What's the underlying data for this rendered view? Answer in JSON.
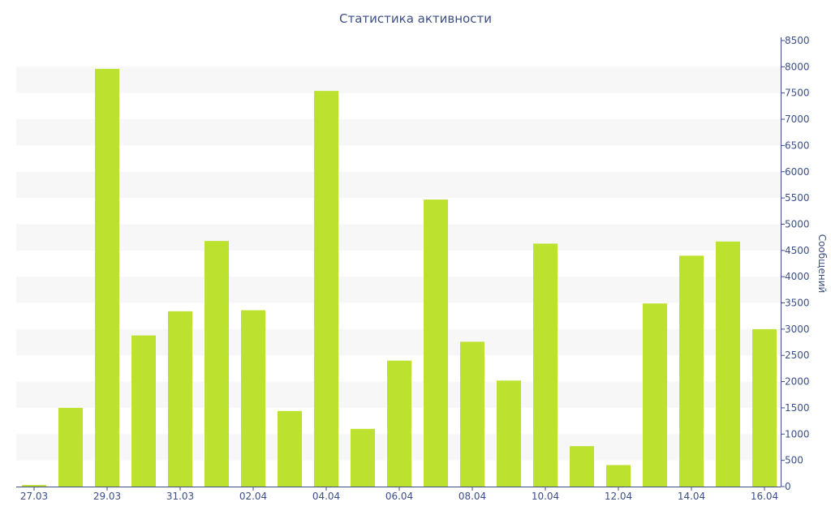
{
  "chart_data": {
    "type": "bar",
    "title": "Статистика активности",
    "xlabel": "",
    "ylabel": "Сообщений",
    "ylim": [
      0,
      8500
    ],
    "y_ticks": [
      0,
      500,
      1000,
      1500,
      2000,
      2500,
      3000,
      3500,
      4000,
      4500,
      5000,
      5500,
      6000,
      6500,
      7000,
      7500,
      8000,
      8500
    ],
    "y_axis_position": "right",
    "grid": "alternating horizontal bands",
    "bar_color": "#bce12f",
    "band_color": "#f7f7f7",
    "text_color": "#3d4f86",
    "categories": [
      "27.03",
      "28.03",
      "29.03",
      "30.03",
      "31.03",
      "01.04",
      "02.04",
      "03.04",
      "04.04",
      "05.04",
      "06.04",
      "07.04",
      "08.04",
      "09.04",
      "10.04",
      "11.04",
      "12.04",
      "13.04",
      "14.04",
      "15.04",
      "16.04"
    ],
    "x_tick_labels": [
      "27.03",
      "",
      "29.03",
      "",
      "31.03",
      "",
      "02.04",
      "",
      "04.04",
      "",
      "06.04",
      "",
      "08.04",
      "",
      "10.04",
      "",
      "12.04",
      "",
      "14.04",
      "",
      "16.04"
    ],
    "values": [
      30,
      1500,
      7960,
      2880,
      3340,
      4680,
      3360,
      1440,
      7540,
      1100,
      2400,
      5470,
      2760,
      2020,
      4630,
      770,
      410,
      3490,
      4400,
      4670,
      3000
    ]
  }
}
